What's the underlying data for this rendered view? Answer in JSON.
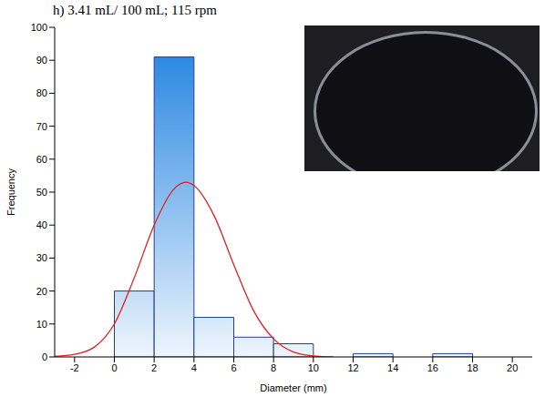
{
  "chart_data": {
    "type": "histogram",
    "title": "h) 3.41 mL/ 100 mL; 115 rpm",
    "x_label": "Diameter (mm)",
    "y_label": "Frequency",
    "bins": [
      0,
      2,
      4,
      6,
      8,
      10,
      12,
      14,
      16,
      18
    ],
    "counts": [
      20,
      91,
      12,
      6,
      4,
      0,
      1,
      0,
      1
    ],
    "color": "#1a7fe0",
    "fit": {
      "x": [
        -3,
        -2,
        -1,
        0,
        1,
        2,
        3,
        3.6,
        4,
        5,
        6,
        7,
        8,
        9,
        10,
        11
      ],
      "values": [
        0.2,
        0.8,
        3,
        10,
        24,
        40,
        51,
        53,
        52,
        43,
        28,
        14,
        5.5,
        1.5,
        0.3,
        0
      ],
      "color": "#e0201e"
    },
    "xlim": [
      -3,
      21
    ],
    "xticks": [
      -2,
      0,
      2,
      4,
      6,
      8,
      10,
      12,
      14,
      16,
      18,
      20
    ],
    "ylim": [
      0,
      100
    ],
    "yticks": [
      0,
      10,
      20,
      30,
      40,
      50,
      60,
      70,
      80,
      90,
      100
    ]
  }
}
